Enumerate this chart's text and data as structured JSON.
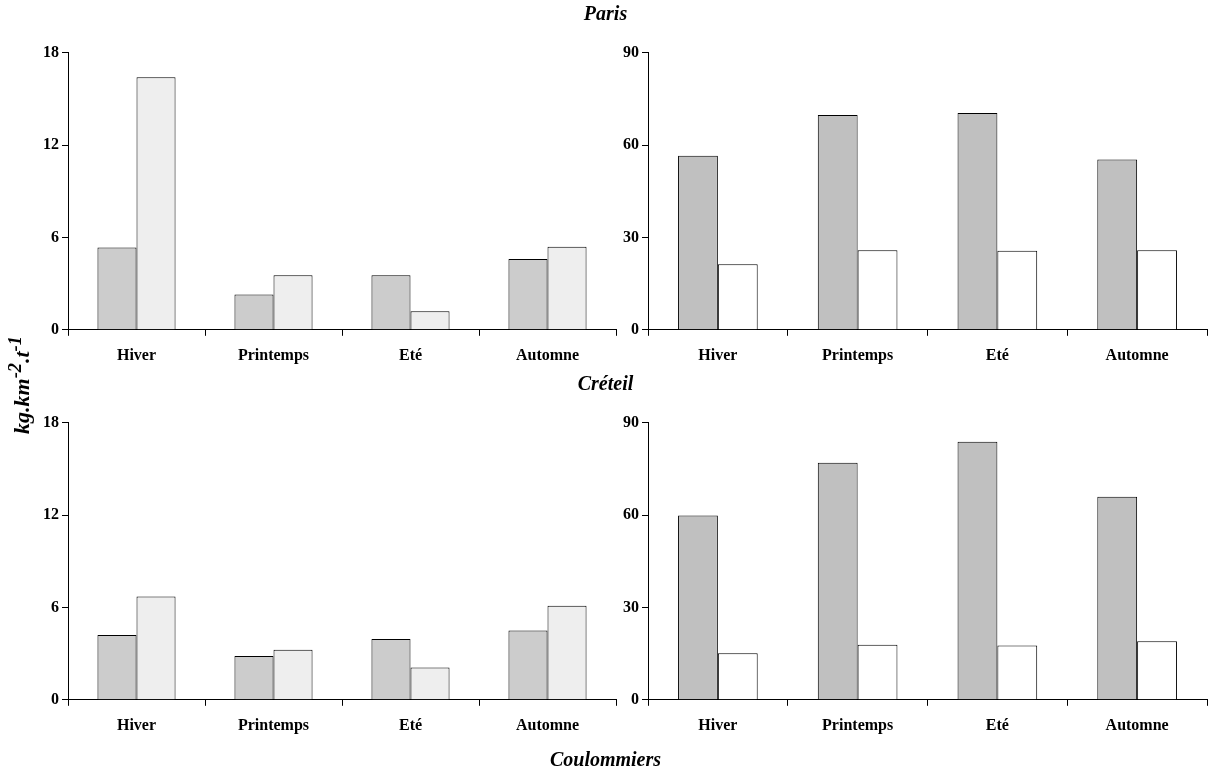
{
  "chart_data": [
    {
      "type": "bar",
      "title": "Paris",
      "ylabel": "kg.km$^{-2}$.t$^{-1}$",
      "categories": [
        "Hiver",
        "Printemps",
        "Eté",
        "Automne"
      ],
      "series": [
        {
          "color": "#cccccc",
          "values": [
            5.35,
            2.3,
            3.55,
            4.6
          ]
        },
        {
          "color": "#eeeeee",
          "values": [
            16.4,
            3.55,
            1.2,
            5.4
          ]
        }
      ],
      "ylim": [
        0,
        18
      ],
      "yticks": [
        0,
        6,
        12,
        18
      ]
    },
    {
      "type": "bar",
      "categories": [
        "Hiver",
        "Printemps",
        "Eté",
        "Automne"
      ],
      "series": [
        {
          "color": "#c0c0c0",
          "values": [
            56.5,
            69.7,
            70.4,
            55.3
          ]
        },
        {
          "color": "#ffffff",
          "values": [
            21.3,
            25.8,
            25.7,
            25.8
          ]
        }
      ],
      "ylim": [
        0,
        90
      ],
      "yticks": [
        0,
        30,
        60,
        90
      ]
    },
    {
      "type": "bar",
      "title": "Créteil",
      "annotations": [
        "Coulommiers"
      ],
      "categories": [
        "Hiver",
        "Printemps",
        "Eté",
        "Automne"
      ],
      "series": [
        {
          "color": "#cccccc",
          "values": [
            4.2,
            2.85,
            3.95,
            4.5
          ]
        },
        {
          "color": "#eeeeee",
          "values": [
            6.7,
            3.25,
            2.1,
            6.1
          ]
        }
      ],
      "ylim": [
        0,
        18
      ],
      "yticks": [
        0,
        6,
        12,
        18
      ]
    },
    {
      "type": "bar",
      "categories": [
        "Hiver",
        "Printemps",
        "Eté",
        "Automne"
      ],
      "series": [
        {
          "color": "#c0c0c0",
          "values": [
            59.8,
            77.0,
            83.8,
            65.9
          ]
        },
        {
          "color": "#ffffff",
          "values": [
            15.1,
            17.9,
            17.6,
            19.0
          ]
        }
      ],
      "ylim": [
        0,
        90
      ],
      "yticks": [
        0,
        30,
        60,
        90
      ]
    }
  ]
}
